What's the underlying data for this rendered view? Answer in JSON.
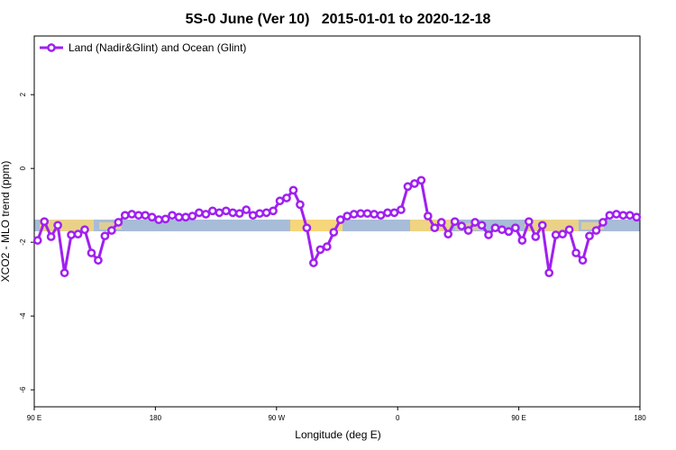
{
  "chart_data": {
    "type": "line",
    "title": "5S-0 June (Ver 10)   2015-01-01 to 2020-12-18",
    "x_label": "Longitude (deg E)",
    "y_label": "XCO2 - MLO trend (ppm)",
    "xlim": [
      90,
      540
    ],
    "ylim": [
      -6.46,
      3.59
    ],
    "xticks": [
      {
        "value": 90,
        "label": "90 E"
      },
      {
        "value": 180,
        "label": "180"
      },
      {
        "value": 270,
        "label": "90 W"
      },
      {
        "value": 360,
        "label": "0"
      },
      {
        "value": 450,
        "label": "90 E"
      },
      {
        "value": 540,
        "label": "180"
      }
    ],
    "yticks": [
      -6,
      -4,
      -2,
      0,
      2
    ],
    "legend_position": "top-left",
    "x": [
      92.5,
      97.5,
      102.5,
      107.5,
      112.5,
      117.5,
      122.5,
      127.5,
      132.5,
      137.5,
      142.5,
      147.5,
      152.5,
      157.5,
      162.5,
      167.5,
      172.5,
      177.5,
      182.5,
      187.5,
      192.5,
      197.5,
      202.5,
      207.5,
      212.5,
      217.5,
      222.5,
      227.5,
      232.5,
      237.5,
      242.5,
      247.5,
      252.5,
      257.5,
      262.5,
      267.5,
      272.5,
      277.5,
      282.5,
      287.5,
      292.5,
      297.5,
      302.5,
      307.5,
      312.5,
      317.5,
      322.5,
      327.5,
      332.5,
      337.5,
      342.5,
      347.5,
      352.5,
      357.5,
      362.5,
      367.5,
      372.5,
      377.5,
      382.5,
      387.5,
      392.5,
      397.5,
      402.5,
      407.5,
      412.5,
      417.5,
      422.5,
      427.5,
      432.5,
      437.5,
      442.5,
      447.5,
      452.5,
      457.5,
      462.5,
      467.5,
      472.5,
      477.5,
      482.5,
      487.5,
      492.5,
      497.5,
      502.5,
      507.5,
      512.5,
      517.5,
      522.5,
      527.5,
      532.5,
      537.5
    ],
    "series": [
      {
        "name": "Land (Nadir&Glint) and Ocean (Glint)",
        "color": "#a020f0",
        "values": [
          -1.95,
          -1.44,
          -1.85,
          -1.54,
          -2.83,
          -1.8,
          -1.78,
          -1.66,
          -2.29,
          -2.49,
          -1.83,
          -1.68,
          -1.46,
          -1.27,
          -1.24,
          -1.27,
          -1.27,
          -1.32,
          -1.39,
          -1.37,
          -1.27,
          -1.32,
          -1.32,
          -1.29,
          -1.2,
          -1.24,
          -1.15,
          -1.2,
          -1.15,
          -1.2,
          -1.22,
          -1.12,
          -1.27,
          -1.22,
          -1.2,
          -1.15,
          -0.88,
          -0.8,
          -0.59,
          -0.98,
          -1.61,
          -2.56,
          -2.2,
          -2.12,
          -1.73,
          -1.39,
          -1.29,
          -1.24,
          -1.22,
          -1.22,
          -1.24,
          -1.27,
          -1.2,
          -1.2,
          -1.12,
          -0.49,
          -0.41,
          -0.32,
          -1.29,
          -1.61,
          -1.46,
          -1.78,
          -1.44,
          -1.56,
          -1.68,
          -1.46,
          -1.54,
          -1.8,
          -1.61,
          -1.66,
          -1.71,
          -1.61,
          -1.95,
          -1.44,
          -1.85,
          -1.54,
          -2.83,
          -1.8,
          -1.78,
          -1.66,
          -2.29,
          -2.49,
          -1.83,
          -1.68,
          -1.46,
          -1.27,
          -1.24,
          -1.27,
          -1.27,
          -1.32
        ]
      }
    ]
  }
}
